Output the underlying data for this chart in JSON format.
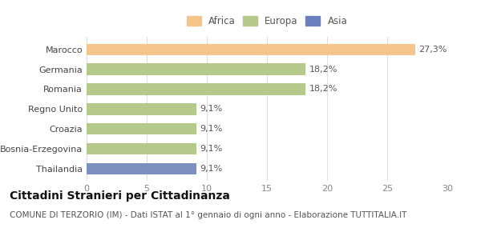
{
  "categories": [
    "Marocco",
    "Germania",
    "Romania",
    "Regno Unito",
    "Croazia",
    "Bosnia-Erzegovina",
    "Thailandia"
  ],
  "values": [
    27.3,
    18.2,
    18.2,
    9.1,
    9.1,
    9.1,
    9.1
  ],
  "labels": [
    "27,3%",
    "18,2%",
    "18,2%",
    "9,1%",
    "9,1%",
    "9,1%",
    "9,1%"
  ],
  "colors": [
    "#f5c48a",
    "#b5c98a",
    "#b5c98a",
    "#b5c98a",
    "#b5c98a",
    "#b5c98a",
    "#7b8fc0"
  ],
  "legend_items": [
    {
      "label": "Africa",
      "color": "#f5c48a"
    },
    {
      "label": "Europa",
      "color": "#b5c98a"
    },
    {
      "label": "Asia",
      "color": "#6b7fc0"
    }
  ],
  "xlim": [
    0,
    30
  ],
  "xticks": [
    0,
    5,
    10,
    15,
    20,
    25,
    30
  ],
  "title": "Cittadini Stranieri per Cittadinanza",
  "subtitle": "COMUNE DI TERZORIO (IM) - Dati ISTAT al 1° gennaio di ogni anno - Elaborazione TUTTITALIA.IT",
  "title_fontsize": 10,
  "subtitle_fontsize": 7.5,
  "bar_height": 0.58,
  "label_fontsize": 8,
  "tick_fontsize": 8,
  "background_color": "#ffffff"
}
